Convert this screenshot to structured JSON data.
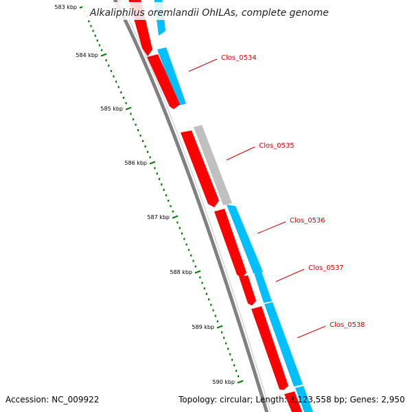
{
  "title": "Alkaliphilus oremlandii OhILAs, complete genome",
  "footer": {
    "accession": "Accession: NC_009922",
    "summary": "Topology: circular; Length: 3,123,558 bp; Genes: 2,950"
  },
  "ticks": [
    {
      "label": "583 kbp"
    },
    {
      "label": "584 kbp"
    },
    {
      "label": "585 kbp"
    },
    {
      "label": "586 kbp"
    },
    {
      "label": "587 kbp"
    },
    {
      "label": "588 kbp"
    },
    {
      "label": "589 kbp"
    },
    {
      "label": "590 kbp"
    }
  ],
  "genes": [
    {
      "label": "Clos_0534",
      "cds_color": "#ff0000",
      "feature_color": "#00bfff"
    },
    {
      "label": "Clos_0535",
      "cds_color": "#ff0000",
      "feature_color": "#c0c0c0"
    },
    {
      "label": "Clos_0536",
      "cds_color": "#ff0000",
      "feature_color": "#00bfff"
    },
    {
      "label": "Clos_0537",
      "cds_color": "#ff0000",
      "feature_color": "#00bfff"
    },
    {
      "label": "Clos_0538",
      "cds_color": "#ff0000",
      "feature_color": "#00bfff"
    }
  ],
  "colors": {
    "backbone": "#808080",
    "tick": "#008000",
    "label_line": "#d40000"
  }
}
